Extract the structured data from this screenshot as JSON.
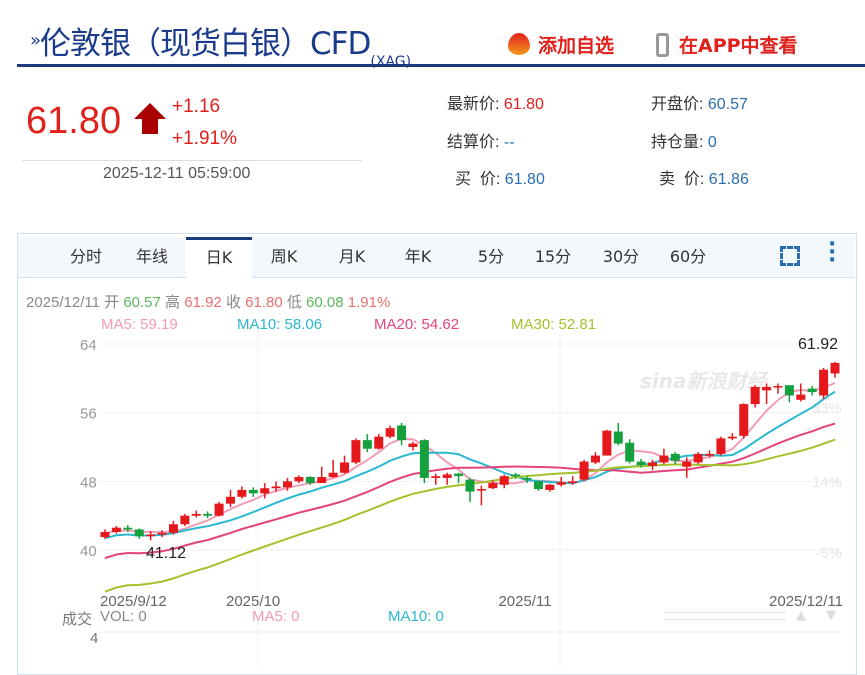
{
  "header": {
    "title": "伦敦银（现货白银）CFD",
    "symbol": "(XAG)",
    "add_watch": "添加自选",
    "view_app": "在APP中查看"
  },
  "quote": {
    "price": "61.80",
    "change": "+1.16",
    "change_pct": "+1.91%",
    "time": "2025-12-11 05:59:00",
    "fields": [
      {
        "label": "最新价:",
        "value": "61.80",
        "color": "red"
      },
      {
        "label": "开盘价:",
        "value": "60.57"
      },
      {
        "label": "结算价:",
        "value": "--"
      },
      {
        "label": "持仓量:",
        "value": "0"
      },
      {
        "label": "买  价:",
        "value": "61.80"
      },
      {
        "label": "卖  价:",
        "value": "61.86"
      }
    ]
  },
  "tabs": [
    "分时",
    "年线",
    "日K",
    "周K",
    "月K",
    "年K",
    "5分",
    "15分",
    "30分",
    "60分"
  ],
  "active_tab": "日K",
  "info": {
    "date": "2025/12/11",
    "open_label": "开",
    "open": "60.57",
    "high_label": "高",
    "high": "61.92",
    "close_label": "收",
    "close": "61.80",
    "low_label": "低",
    "low": "60.08",
    "pct": "1.91%"
  },
  "ma": {
    "ma5": "MA5: 59.19",
    "ma10": "MA10: 58.06",
    "ma20": "MA20: 54.62",
    "ma30": "MA30: 52.81"
  },
  "volume": {
    "label": "成交",
    "vol": "VOL: 0",
    "ma5": "MA5: 0",
    "ma10": "MA10: 0",
    "axis": "4"
  },
  "colors": {
    "up": "#e5191b",
    "down": "#14a03c",
    "ma5": "#f29bb8",
    "ma10": "#2ab8d0",
    "ma20": "#e5437a",
    "ma30": "#a3c22b"
  },
  "chart_data": {
    "type": "candlestick",
    "ylim": [
      40,
      64
    ],
    "yticks": [
      "64",
      "56",
      "48",
      "40"
    ],
    "pct_ticks": [
      "33%",
      "14%",
      "-5%"
    ],
    "xticks": [
      "2025/9/12",
      "2025/10",
      "2025/11",
      "2025/12/11"
    ],
    "max_label": "61.92",
    "min_label": "41.12",
    "ohlc": [
      [
        41.5,
        42.1,
        42.4,
        41.3
      ],
      [
        42.1,
        42.6,
        42.8,
        41.9
      ],
      [
        42.6,
        42.4,
        42.9,
        42.1
      ],
      [
        42.4,
        41.6,
        42.5,
        41.3
      ],
      [
        41.6,
        41.8,
        42.2,
        41.12
      ],
      [
        41.8,
        42.0,
        42.3,
        41.5
      ],
      [
        42.0,
        43.0,
        43.4,
        41.8
      ],
      [
        43.0,
        44.0,
        44.2,
        42.8
      ],
      [
        44.0,
        44.2,
        44.6,
        43.8
      ],
      [
        44.2,
        44.0,
        44.5,
        43.7
      ],
      [
        44.0,
        45.4,
        45.6,
        43.9
      ],
      [
        45.4,
        46.2,
        47.0,
        45.0
      ],
      [
        46.2,
        47.0,
        47.4,
        46.0
      ],
      [
        47.0,
        46.6,
        47.3,
        46.2
      ],
      [
        46.6,
        47.2,
        47.8,
        46.0
      ],
      [
        47.2,
        47.4,
        48.0,
        46.8
      ],
      [
        47.3,
        48.0,
        48.4,
        46.9
      ],
      [
        48.0,
        48.5,
        48.7,
        47.8
      ],
      [
        48.5,
        47.8,
        48.6,
        47.6
      ],
      [
        47.8,
        48.5,
        49.7,
        47.8
      ],
      [
        48.5,
        49.0,
        50.5,
        48.4
      ],
      [
        49.0,
        50.2,
        51.0,
        48.9
      ],
      [
        50.2,
        52.8,
        53.0,
        50.0
      ],
      [
        52.8,
        51.8,
        53.5,
        51.4
      ],
      [
        51.8,
        53.2,
        53.5,
        51.7
      ],
      [
        53.2,
        54.2,
        54.5,
        53.0
      ],
      [
        54.5,
        52.8,
        54.8,
        52.2
      ],
      [
        52.0,
        52.4,
        52.6,
        51.6
      ],
      [
        52.8,
        48.4,
        52.9,
        47.8
      ],
      [
        48.4,
        48.6,
        48.9,
        47.6
      ],
      [
        48.4,
        48.8,
        49.0,
        47.6
      ],
      [
        48.9,
        48.6,
        49.0,
        47.8
      ],
      [
        48.2,
        46.8,
        48.4,
        45.6
      ],
      [
        47.0,
        47.1,
        47.5,
        45.2
      ],
      [
        47.2,
        47.8,
        48.1,
        47.1
      ],
      [
        47.6,
        48.6,
        48.8,
        47.2
      ],
      [
        48.8,
        48.6,
        49.0,
        48.3
      ],
      [
        48.4,
        48.2,
        48.6,
        47.8
      ],
      [
        48.0,
        47.1,
        48.1,
        46.9
      ],
      [
        47.0,
        47.6,
        47.7,
        46.8
      ],
      [
        47.6,
        47.9,
        48.5,
        47.4
      ],
      [
        47.8,
        48.0,
        48.6,
        47.6
      ],
      [
        48.2,
        50.3,
        50.5,
        48.0
      ],
      [
        50.2,
        51.0,
        51.4,
        50.0
      ],
      [
        51.0,
        53.9,
        54.0,
        51.0
      ],
      [
        53.8,
        52.4,
        54.8,
        52.2
      ],
      [
        52.5,
        50.3,
        52.9,
        50.1
      ],
      [
        50.3,
        49.9,
        50.6,
        49.6
      ],
      [
        49.8,
        50.2,
        50.5,
        49.3
      ],
      [
        50.2,
        51.0,
        51.8,
        50.0
      ],
      [
        51.2,
        50.4,
        51.4,
        50.0
      ],
      [
        49.7,
        50.3,
        50.8,
        48.4
      ],
      [
        50.2,
        51.2,
        51.4,
        50.0
      ],
      [
        51.0,
        51.2,
        51.6,
        50.8
      ],
      [
        51.2,
        53.0,
        53.2,
        51.0
      ],
      [
        53.0,
        53.2,
        53.6,
        52.8
      ],
      [
        53.3,
        57.0,
        57.1,
        53.0
      ],
      [
        57.0,
        59.0,
        59.2,
        56.6
      ],
      [
        58.6,
        59.0,
        59.4,
        57.0
      ],
      [
        59.0,
        59.1,
        59.4,
        58.2
      ],
      [
        59.2,
        58.0,
        59.2,
        57.2
      ],
      [
        57.5,
        58.1,
        59.4,
        57.3
      ],
      [
        58.8,
        58.4,
        59.1,
        58.0
      ],
      [
        58.0,
        61.0,
        61.2,
        57.6
      ],
      [
        60.57,
        61.8,
        61.92,
        60.08
      ]
    ]
  }
}
